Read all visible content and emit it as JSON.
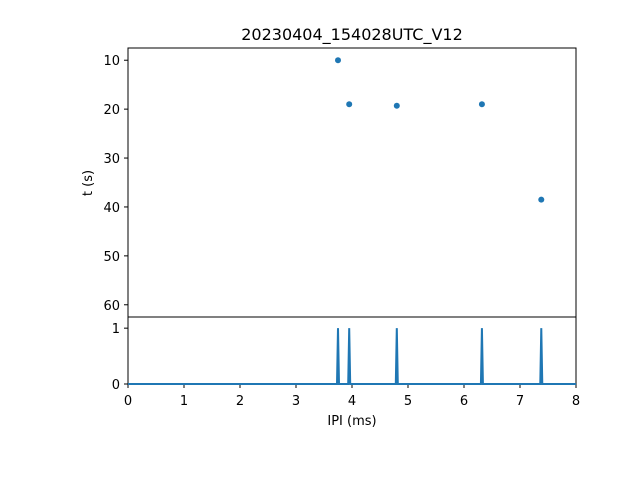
{
  "chart_data": [
    {
      "type": "scatter",
      "title": "20230404_154028UTC_V12",
      "xlabel": "",
      "ylabel": "t (s)",
      "xlim": [
        0,
        8
      ],
      "ylim": [
        62.5,
        7.5
      ],
      "y_inverted": true,
      "yticks": [
        10,
        20,
        30,
        40,
        50,
        60
      ],
      "ytick_labels": [
        "10",
        "20",
        "30",
        "40",
        "50",
        "60"
      ],
      "color": "#1f77b4",
      "points": [
        {
          "x": 3.75,
          "y": 10.0
        },
        {
          "x": 3.95,
          "y": 19.0
        },
        {
          "x": 4.8,
          "y": 19.3
        },
        {
          "x": 6.32,
          "y": 19.0
        },
        {
          "x": 7.38,
          "y": 38.5
        }
      ]
    },
    {
      "type": "line",
      "xlabel": "IPI (ms)",
      "ylabel": "",
      "xlim": [
        0,
        8
      ],
      "ylim": [
        0,
        1.2
      ],
      "xticks": [
        0,
        1,
        2,
        3,
        4,
        5,
        6,
        7,
        8
      ],
      "xtick_labels": [
        "0",
        "1",
        "2",
        "3",
        "4",
        "5",
        "6",
        "7",
        "8"
      ],
      "yticks": [
        0,
        1
      ],
      "ytick_labels": [
        "0",
        "1"
      ],
      "color": "#1f77b4",
      "spikes": [
        3.75,
        3.95,
        4.8,
        6.32,
        7.38
      ],
      "spike_value": 1
    }
  ]
}
